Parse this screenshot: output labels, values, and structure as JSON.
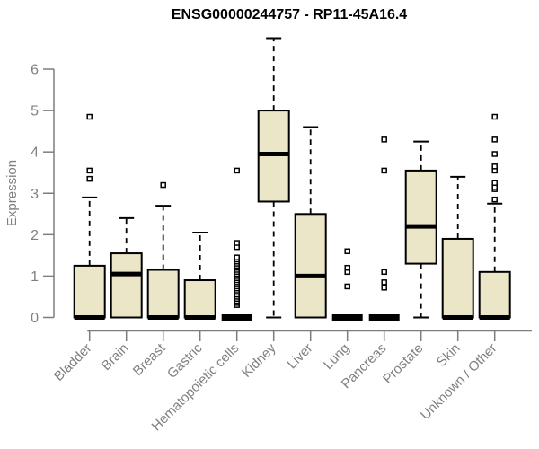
{
  "chart_data": {
    "type": "boxplot",
    "title": "ENSG00000244757 - RP11-45A16.4",
    "ylabel": "Expression",
    "ylim": [
      0,
      6
    ],
    "yticks": [
      0,
      1,
      2,
      3,
      4,
      5,
      6
    ],
    "grid": false,
    "legend": false,
    "categories": [
      "Bladder",
      "Brain",
      "Breast",
      "Gastric",
      "Hematopoietic cells",
      "Kidney",
      "Liver",
      "Lung",
      "Pancreas",
      "Prostate",
      "Skin",
      "Unknown / Other"
    ],
    "series": [
      {
        "category": "Bladder",
        "whisker_low": 0,
        "q1": 0,
        "median": 0,
        "q3": 1.25,
        "whisker_high": 2.9,
        "outliers": [
          3.35,
          3.55,
          4.85
        ]
      },
      {
        "category": "Brain",
        "whisker_low": 0,
        "q1": 0,
        "median": 1.05,
        "q3": 1.55,
        "whisker_high": 2.4,
        "outliers": []
      },
      {
        "category": "Breast",
        "whisker_low": 0,
        "q1": 0,
        "median": 0,
        "q3": 1.15,
        "whisker_high": 2.7,
        "outliers": [
          3.2
        ]
      },
      {
        "category": "Gastric",
        "whisker_low": 0,
        "q1": 0,
        "median": 0,
        "q3": 0.9,
        "whisker_high": 2.05,
        "outliers": []
      },
      {
        "category": "Hematopoietic cells",
        "whisker_low": 0,
        "q1": 0,
        "median": 0,
        "q3": 0,
        "whisker_high": 0,
        "outliers": [
          0.3,
          0.35,
          0.4,
          0.45,
          0.5,
          0.55,
          0.6,
          0.65,
          0.7,
          0.75,
          0.8,
          0.85,
          0.9,
          0.95,
          1.0,
          1.05,
          1.1,
          1.15,
          1.2,
          1.25,
          1.3,
          1.35,
          1.4,
          1.45,
          1.7,
          1.8,
          3.55
        ]
      },
      {
        "category": "Kidney",
        "whisker_low": 0,
        "q1": 2.8,
        "median": 3.95,
        "q3": 5.0,
        "whisker_high": 6.75,
        "outliers": []
      },
      {
        "category": "Liver",
        "whisker_low": 0,
        "q1": 0,
        "median": 1.0,
        "q3": 2.5,
        "whisker_high": 4.6,
        "outliers": []
      },
      {
        "category": "Lung",
        "whisker_low": 0,
        "q1": 0,
        "median": 0,
        "q3": 0,
        "whisker_high": 0,
        "outliers": [
          0.75,
          1.1,
          1.2,
          1.6
        ]
      },
      {
        "category": "Pancreas",
        "whisker_low": 0,
        "q1": 0,
        "median": 0,
        "q3": 0,
        "whisker_high": 0,
        "outliers": [
          0.72,
          0.85,
          1.1,
          3.55,
          4.3
        ]
      },
      {
        "category": "Prostate",
        "whisker_low": 0,
        "q1": 1.3,
        "median": 2.2,
        "q3": 3.55,
        "whisker_high": 4.25,
        "outliers": []
      },
      {
        "category": "Skin",
        "whisker_low": 0,
        "q1": 0,
        "median": 0,
        "q3": 1.9,
        "whisker_high": 3.4,
        "outliers": []
      },
      {
        "category": "Unknown / Other",
        "whisker_low": 0,
        "q1": 0,
        "median": 0,
        "q3": 1.1,
        "whisker_high": 2.75,
        "outliers": [
          2.85,
          3.1,
          3.15,
          3.25,
          3.55,
          3.65,
          3.95,
          4.3,
          4.85
        ]
      }
    ],
    "colors": {
      "box_fill": "#ECE6C8",
      "box_border": "#000000",
      "median": "#000000",
      "axis": "#7d7d7d",
      "tick_label": "#808080",
      "title": "#000000",
      "background": "#FFFFFF"
    }
  }
}
